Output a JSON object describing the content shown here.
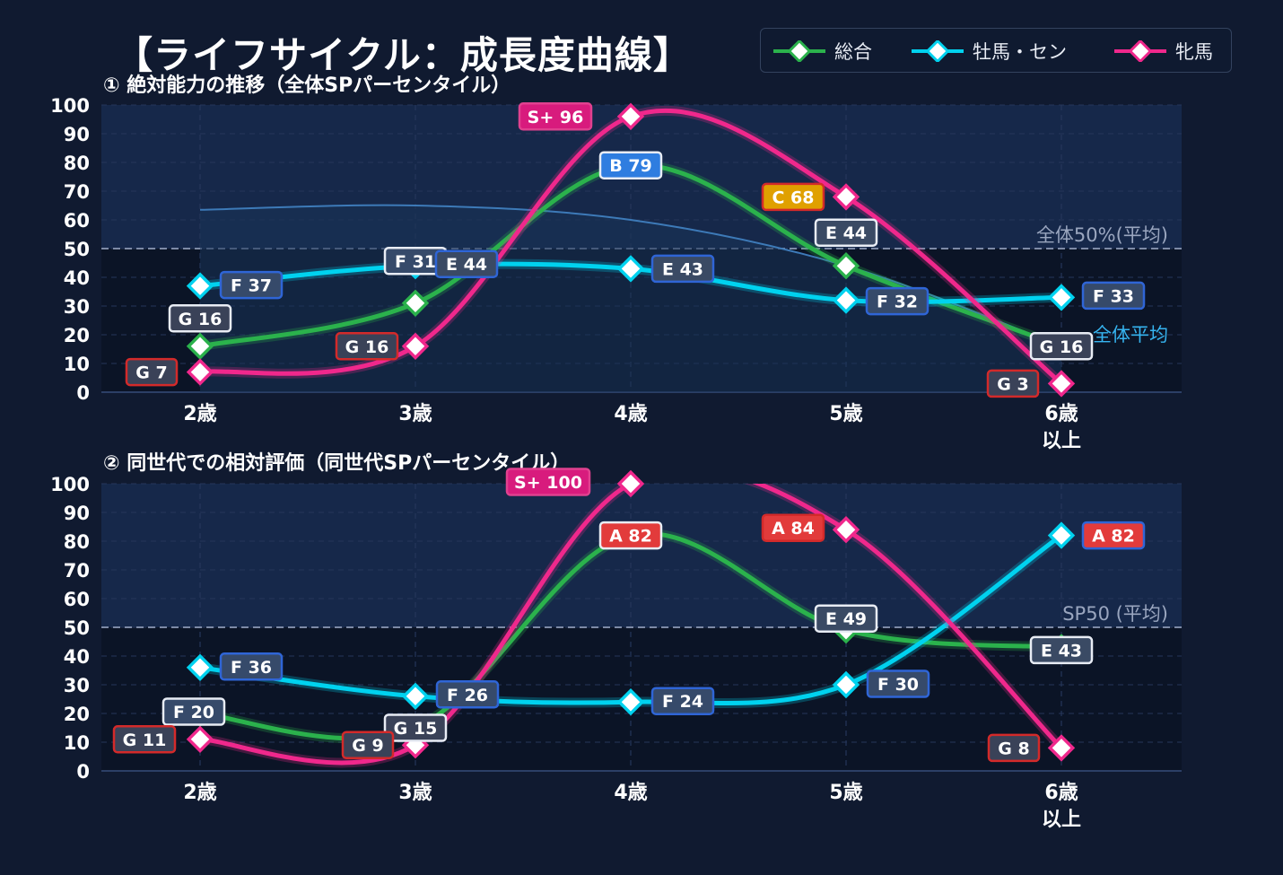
{
  "title": "【ライフサイクル：成長度曲線】",
  "legend": [
    {
      "name": "総合",
      "color": "#2bb24c"
    },
    {
      "name": "牡馬・セン",
      "color": "#00d2ef"
    },
    {
      "name": "牝馬",
      "color": "#f0288c"
    }
  ],
  "chart_data": [
    {
      "type": "line",
      "title": "① 絶対能力の推移（全体SPパーセンタイル）",
      "categories": [
        "2歳",
        "3歳",
        "4歳",
        "5歳",
        "6歳\n以上"
      ],
      "ylim": [
        0,
        100
      ],
      "yticks": [
        0,
        10,
        20,
        30,
        40,
        50,
        60,
        70,
        80,
        90,
        100
      ],
      "grid": true,
      "reference_line": {
        "value": 50,
        "label": "全体50%(平均)"
      },
      "average_area": {
        "label": "全体平均",
        "values": [
          63.5,
          65,
          60,
          44,
          16
        ]
      },
      "series": [
        {
          "name": "総合",
          "values": [
            16,
            31,
            79,
            44,
            16
          ],
          "labels": [
            "G 16",
            "F 31",
            "B 79",
            "E 44",
            "G 16"
          ]
        },
        {
          "name": "牡馬・セン",
          "values": [
            37,
            44,
            43,
            32,
            33
          ],
          "labels": [
            "F 37",
            "E 44",
            "E 43",
            "F 32",
            "F 33"
          ]
        },
        {
          "name": "牝馬",
          "values": [
            7,
            16,
            96,
            68,
            3
          ],
          "labels": [
            "G 7",
            "G 16",
            "S+ 96",
            "C 68",
            "G 3"
          ]
        }
      ]
    },
    {
      "type": "line",
      "title": "② 同世代での相対評価（同世代SPパーセンタイル）",
      "categories": [
        "2歳",
        "3歳",
        "4歳",
        "5歳",
        "6歳\n以上"
      ],
      "ylim": [
        0,
        100
      ],
      "yticks": [
        0,
        10,
        20,
        30,
        40,
        50,
        60,
        70,
        80,
        90,
        100
      ],
      "grid": true,
      "reference_line": {
        "value": 50,
        "label": "SP50 (平均)"
      },
      "series": [
        {
          "name": "総合",
          "values": [
            20,
            15,
            82,
            49,
            43
          ],
          "labels": [
            "F 20",
            "G 15",
            "A 82",
            "E 49",
            "E 43"
          ]
        },
        {
          "name": "牡馬・セン",
          "values": [
            36,
            26,
            24,
            30,
            82
          ],
          "labels": [
            "F 36",
            "F 26",
            "F 24",
            "F 30",
            "A 82"
          ]
        },
        {
          "name": "牝馬",
          "values": [
            11,
            9,
            100,
            84,
            8
          ],
          "labels": [
            "G 11",
            "G 9",
            "S+ 100",
            "A 84",
            "G 8"
          ]
        }
      ]
    }
  ],
  "grade_colors": {
    "S+": "#d81b7d",
    "A": "#e23b3b",
    "B": "#2f7de0",
    "C": "#e0a000",
    "E": "#3a4a64",
    "F": "#364a6a",
    "G": "#3a4258"
  }
}
